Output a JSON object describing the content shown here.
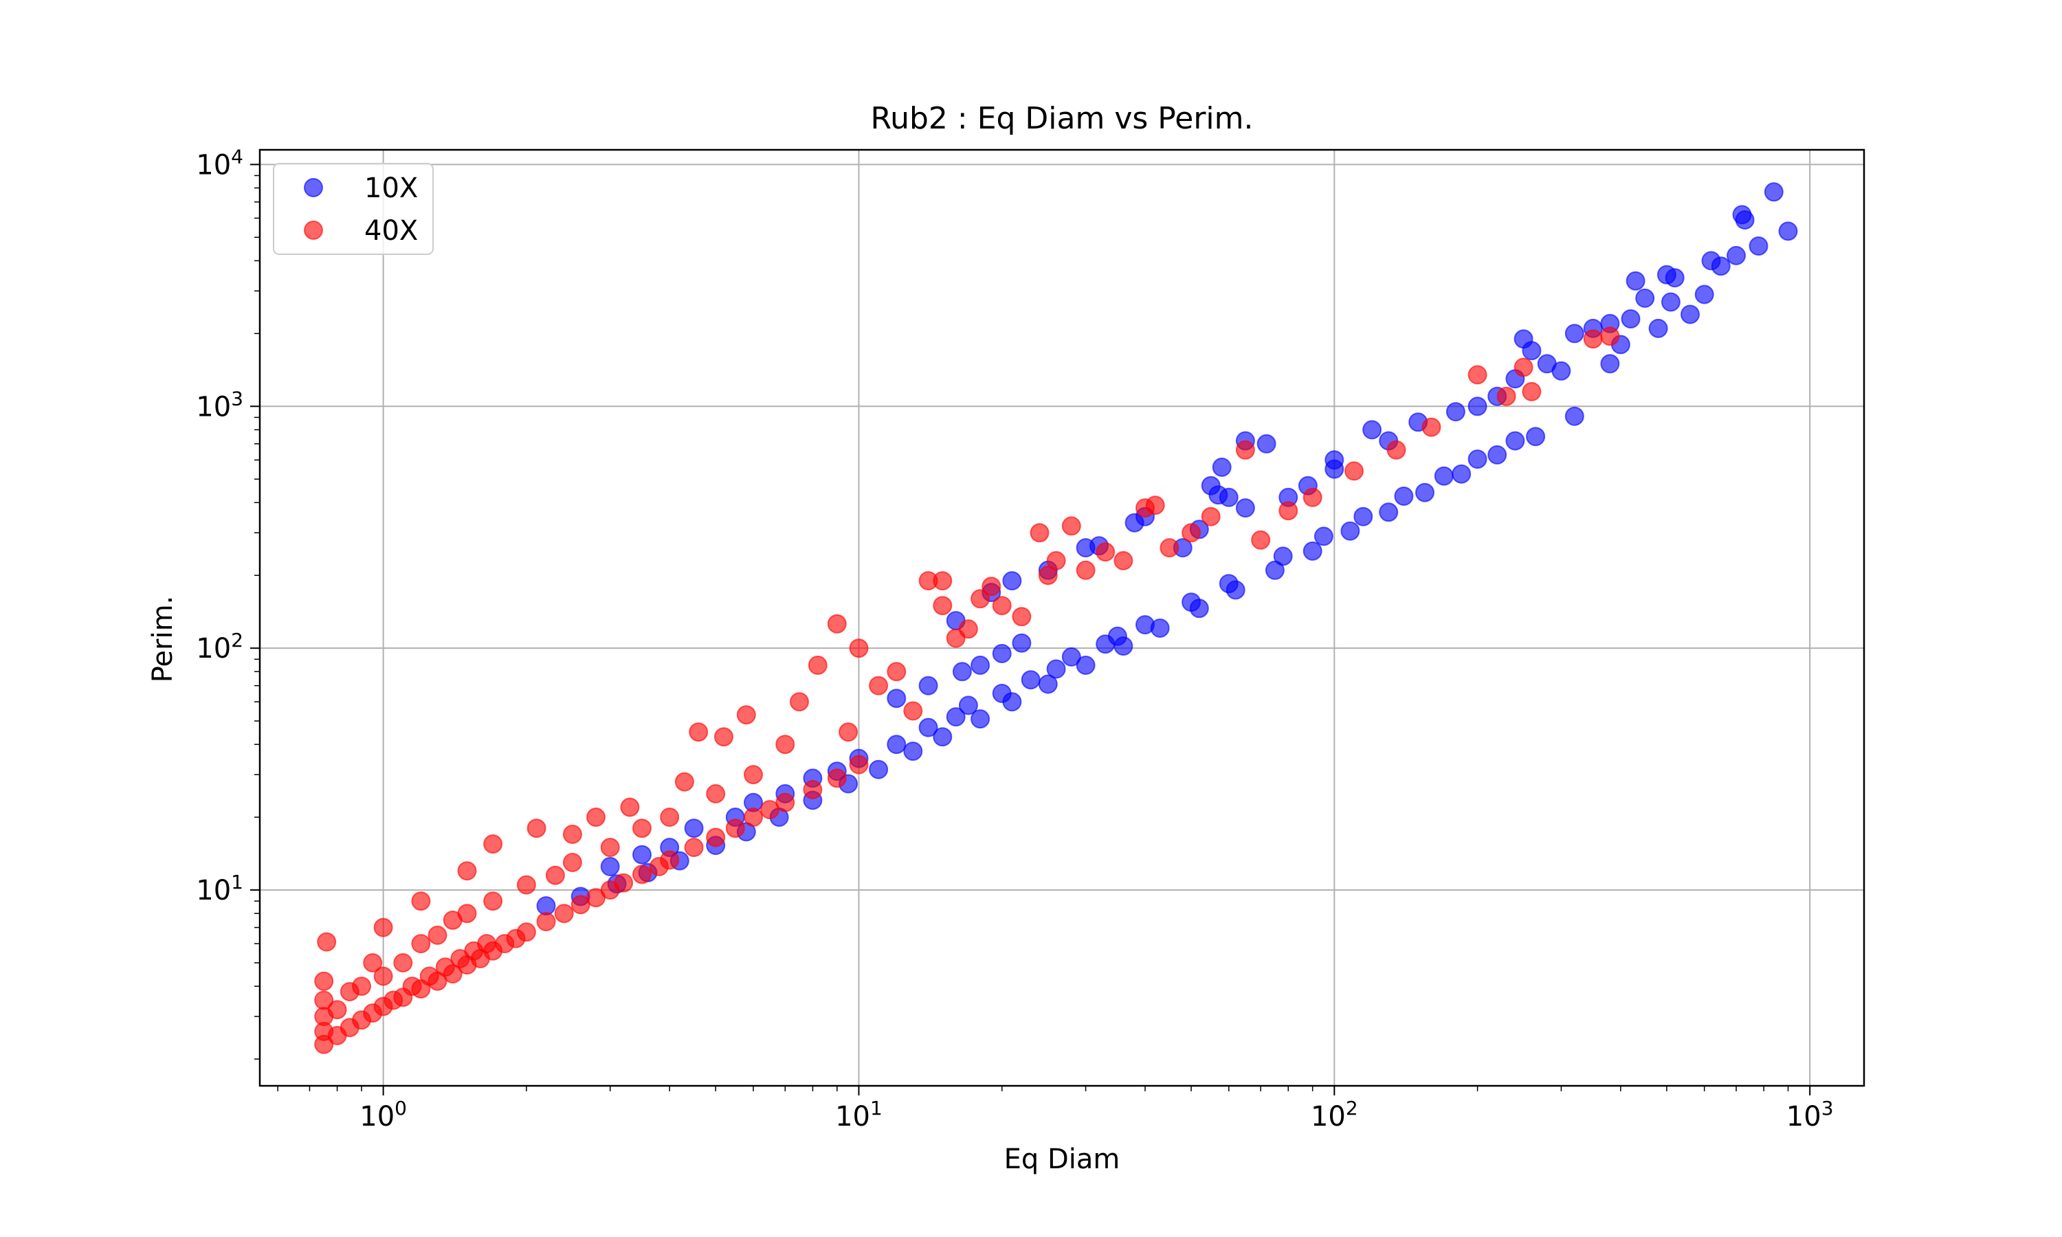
{
  "chart_data": {
    "type": "scatter",
    "title": "Rub2 : Eq Diam vs Perim.",
    "xlabel": "Eq Diam",
    "ylabel": "Perim.",
    "xscale": "log",
    "yscale": "log",
    "xlim": [
      0.55,
      1300
    ],
    "ylim": [
      1.55,
      11500
    ],
    "grid": true,
    "legend_position": "top-left",
    "x_ticks": [
      {
        "value": 1,
        "base": "10",
        "exp": "0"
      },
      {
        "value": 10,
        "base": "10",
        "exp": "1"
      },
      {
        "value": 100,
        "base": "10",
        "exp": "2"
      },
      {
        "value": 1000,
        "base": "10",
        "exp": "3"
      }
    ],
    "y_ticks": [
      {
        "value": 10,
        "base": "10",
        "exp": "1"
      },
      {
        "value": 100,
        "base": "10",
        "exp": "2"
      },
      {
        "value": 1000,
        "base": "10",
        "exp": "3"
      },
      {
        "value": 10000,
        "base": "10",
        "exp": "4"
      }
    ],
    "series": [
      {
        "name": "10X",
        "color": "#0000ff",
        "points": [
          [
            2.2,
            8.6
          ],
          [
            2.6,
            9.4
          ],
          [
            3.1,
            10.6
          ],
          [
            3.6,
            11.8
          ],
          [
            4.2,
            13.2
          ],
          [
            5.0,
            15.3
          ],
          [
            5.8,
            17.4
          ],
          [
            6.8,
            20.0
          ],
          [
            8.0,
            23.5
          ],
          [
            9.5,
            27.5
          ],
          [
            11.0,
            31.5
          ],
          [
            13.0,
            37.5
          ],
          [
            15.0,
            43.0
          ],
          [
            18.0,
            51.0
          ],
          [
            21.0,
            60.0
          ],
          [
            25.0,
            71.0
          ],
          [
            30.0,
            85.0
          ],
          [
            36.0,
            102.0
          ],
          [
            43.0,
            121.0
          ],
          [
            52.0,
            146.0
          ],
          [
            62.0,
            174.0
          ],
          [
            75.0,
            210.0
          ],
          [
            90.0,
            252.0
          ],
          [
            108.0,
            305.0
          ],
          [
            130.0,
            365.0
          ],
          [
            155.0,
            440.0
          ],
          [
            185.0,
            525.0
          ],
          [
            220.0,
            630.0
          ],
          [
            265.0,
            750.0
          ],
          [
            320.0,
            910.0
          ],
          [
            3.0,
            12.5
          ],
          [
            4.0,
            15.0
          ],
          [
            5.5,
            20.0
          ],
          [
            7.0,
            25.0
          ],
          [
            9.0,
            31.0
          ],
          [
            12.0,
            40.0
          ],
          [
            16.0,
            52.0
          ],
          [
            20.0,
            65.0
          ],
          [
            26.0,
            82.0
          ],
          [
            33.0,
            104.0
          ],
          [
            40.0,
            125.0
          ],
          [
            50.0,
            155.0
          ],
          [
            60.0,
            185.0
          ],
          [
            78.0,
            240.0
          ],
          [
            95.0,
            290.0
          ],
          [
            115.0,
            350.0
          ],
          [
            140.0,
            425.0
          ],
          [
            170.0,
            515.0
          ],
          [
            200.0,
            605.0
          ],
          [
            240.0,
            720.0
          ],
          [
            3.5,
            14.0
          ],
          [
            4.5,
            18.0
          ],
          [
            6.0,
            23.0
          ],
          [
            8.0,
            29.0
          ],
          [
            10.0,
            35.0
          ],
          [
            14.0,
            47.0
          ],
          [
            17.0,
            58.0
          ],
          [
            23.0,
            74.0
          ],
          [
            28.0,
            92.0
          ],
          [
            35.0,
            112.0
          ],
          [
            12.0,
            62.0
          ],
          [
            14.0,
            70.0
          ],
          [
            16.5,
            80.0
          ],
          [
            18.0,
            85.0
          ],
          [
            20.0,
            95.0
          ],
          [
            22.0,
            105.0
          ],
          [
            16.0,
            130.0
          ],
          [
            19.0,
            170.0
          ],
          [
            21.0,
            190.0
          ],
          [
            25.0,
            210.0
          ],
          [
            30.0,
            260.0
          ],
          [
            32.0,
            265.0
          ],
          [
            38.0,
            330.0
          ],
          [
            40.0,
            350.0
          ],
          [
            48.0,
            260.0
          ],
          [
            52.0,
            310.0
          ],
          [
            55.0,
            470.0
          ],
          [
            57.0,
            430.0
          ],
          [
            60.0,
            420.0
          ],
          [
            65.0,
            380.0
          ],
          [
            58.0,
            560.0
          ],
          [
            65.0,
            720.0
          ],
          [
            72.0,
            700.0
          ],
          [
            80.0,
            420.0
          ],
          [
            88.0,
            470.0
          ],
          [
            100.0,
            550.0
          ],
          [
            100.0,
            600.0
          ],
          [
            120.0,
            800.0
          ],
          [
            130.0,
            720.0
          ],
          [
            150.0,
            860.0
          ],
          [
            180.0,
            950.0
          ],
          [
            200.0,
            1000.0
          ],
          [
            220.0,
            1100.0
          ],
          [
            240.0,
            1300.0
          ],
          [
            250.0,
            1900.0
          ],
          [
            260.0,
            1700.0
          ],
          [
            280.0,
            1500.0
          ],
          [
            300.0,
            1400.0
          ],
          [
            320.0,
            2000.0
          ],
          [
            350.0,
            2100.0
          ],
          [
            380.0,
            1500.0
          ],
          [
            400.0,
            1800.0
          ],
          [
            420.0,
            2300.0
          ],
          [
            450.0,
            2800.0
          ],
          [
            480.0,
            2100.0
          ],
          [
            500.0,
            3500.0
          ],
          [
            520.0,
            3400.0
          ],
          [
            560.0,
            2400.0
          ],
          [
            600.0,
            2900.0
          ],
          [
            650.0,
            3800.0
          ],
          [
            700.0,
            4200.0
          ],
          [
            720.0,
            6200.0
          ],
          [
            730.0,
            5900.0
          ],
          [
            780.0,
            4600.0
          ],
          [
            840.0,
            7700.0
          ],
          [
            900.0,
            5300.0
          ],
          [
            430.0,
            3300.0
          ],
          [
            510.0,
            2700.0
          ],
          [
            620.0,
            4000.0
          ],
          [
            380.0,
            2200.0
          ]
        ]
      },
      {
        "name": "40X",
        "color": "#ff0000",
        "points": [
          [
            0.75,
            2.3
          ],
          [
            0.75,
            2.6
          ],
          [
            0.75,
            3.0
          ],
          [
            0.75,
            3.5
          ],
          [
            0.75,
            4.2
          ],
          [
            0.76,
            6.1
          ],
          [
            0.8,
            2.5
          ],
          [
            0.8,
            3.2
          ],
          [
            0.85,
            2.7
          ],
          [
            0.85,
            3.8
          ],
          [
            0.9,
            2.9
          ],
          [
            0.9,
            4.0
          ],
          [
            0.95,
            3.1
          ],
          [
            0.95,
            5.0
          ],
          [
            1.0,
            3.3
          ],
          [
            1.0,
            4.4
          ],
          [
            1.0,
            7.0
          ],
          [
            1.1,
            3.6
          ],
          [
            1.1,
            5.0
          ],
          [
            1.2,
            3.9
          ],
          [
            1.2,
            6.0
          ],
          [
            1.2,
            9.0
          ],
          [
            1.3,
            4.2
          ],
          [
            1.3,
            6.5
          ],
          [
            1.4,
            4.5
          ],
          [
            1.4,
            7.5
          ],
          [
            1.5,
            4.9
          ],
          [
            1.5,
            8.0
          ],
          [
            1.5,
            12.0
          ],
          [
            1.6,
            5.2
          ],
          [
            1.7,
            5.6
          ],
          [
            1.7,
            9.0
          ],
          [
            1.7,
            15.5
          ],
          [
            1.8,
            6.0
          ],
          [
            1.9,
            6.3
          ],
          [
            2.0,
            6.7
          ],
          [
            2.0,
            10.5
          ],
          [
            2.1,
            18.0
          ],
          [
            2.2,
            7.4
          ],
          [
            2.3,
            11.5
          ],
          [
            2.4,
            8.0
          ],
          [
            2.5,
            13.0
          ],
          [
            2.5,
            17.0
          ],
          [
            2.6,
            8.7
          ],
          [
            2.8,
            9.3
          ],
          [
            2.8,
            20.0
          ],
          [
            3.0,
            10.0
          ],
          [
            3.0,
            15.0
          ],
          [
            3.2,
            10.7
          ],
          [
            3.3,
            22.0
          ],
          [
            3.5,
            11.6
          ],
          [
            3.5,
            18.0
          ],
          [
            3.8,
            12.5
          ],
          [
            4.0,
            13.3
          ],
          [
            4.0,
            20.0
          ],
          [
            4.3,
            28.0
          ],
          [
            4.5,
            15.0
          ],
          [
            4.6,
            45.0
          ],
          [
            5.0,
            16.5
          ],
          [
            5.0,
            25.0
          ],
          [
            5.2,
            43.0
          ],
          [
            5.5,
            18.0
          ],
          [
            5.8,
            53.0
          ],
          [
            6.0,
            20.0
          ],
          [
            6.0,
            30.0
          ],
          [
            6.5,
            21.5
          ],
          [
            7.0,
            23.0
          ],
          [
            7.0,
            40.0
          ],
          [
            7.5,
            60.0
          ],
          [
            8.0,
            26.0
          ],
          [
            8.2,
            85.0
          ],
          [
            9.0,
            29.0
          ],
          [
            9.0,
            126.0
          ],
          [
            9.5,
            45.0
          ],
          [
            10.0,
            100.0
          ],
          [
            10.0,
            33.0
          ],
          [
            11.0,
            70.0
          ],
          [
            12.0,
            80.0
          ],
          [
            13.0,
            55.0
          ],
          [
            14.0,
            190.0
          ],
          [
            15.0,
            190.0
          ],
          [
            15.0,
            150.0
          ],
          [
            16.0,
            110.0
          ],
          [
            17.0,
            120.0
          ],
          [
            18.0,
            160.0
          ],
          [
            19.0,
            180.0
          ],
          [
            20.0,
            150.0
          ],
          [
            22.0,
            135.0
          ],
          [
            24.0,
            300.0
          ],
          [
            25.0,
            200.0
          ],
          [
            26.0,
            230.0
          ],
          [
            28.0,
            320.0
          ],
          [
            30.0,
            210.0
          ],
          [
            33.0,
            250.0
          ],
          [
            36.0,
            230.0
          ],
          [
            40.0,
            380.0
          ],
          [
            42.0,
            390.0
          ],
          [
            45.0,
            260.0
          ],
          [
            50.0,
            300.0
          ],
          [
            55.0,
            350.0
          ],
          [
            65.0,
            660.0
          ],
          [
            70.0,
            280.0
          ],
          [
            80.0,
            370.0
          ],
          [
            90.0,
            420.0
          ],
          [
            110.0,
            540.0
          ],
          [
            135.0,
            660.0
          ],
          [
            160.0,
            820.0
          ],
          [
            200.0,
            1350.0
          ],
          [
            230.0,
            1100.0
          ],
          [
            250.0,
            1450.0
          ],
          [
            260.0,
            1150.0
          ],
          [
            350.0,
            1900.0
          ],
          [
            380.0,
            1950.0
          ],
          [
            1.05,
            3.5
          ],
          [
            1.15,
            4.0
          ],
          [
            1.25,
            4.4
          ],
          [
            1.35,
            4.8
          ],
          [
            1.45,
            5.2
          ],
          [
            1.55,
            5.6
          ],
          [
            1.65,
            6.0
          ]
        ]
      }
    ]
  }
}
